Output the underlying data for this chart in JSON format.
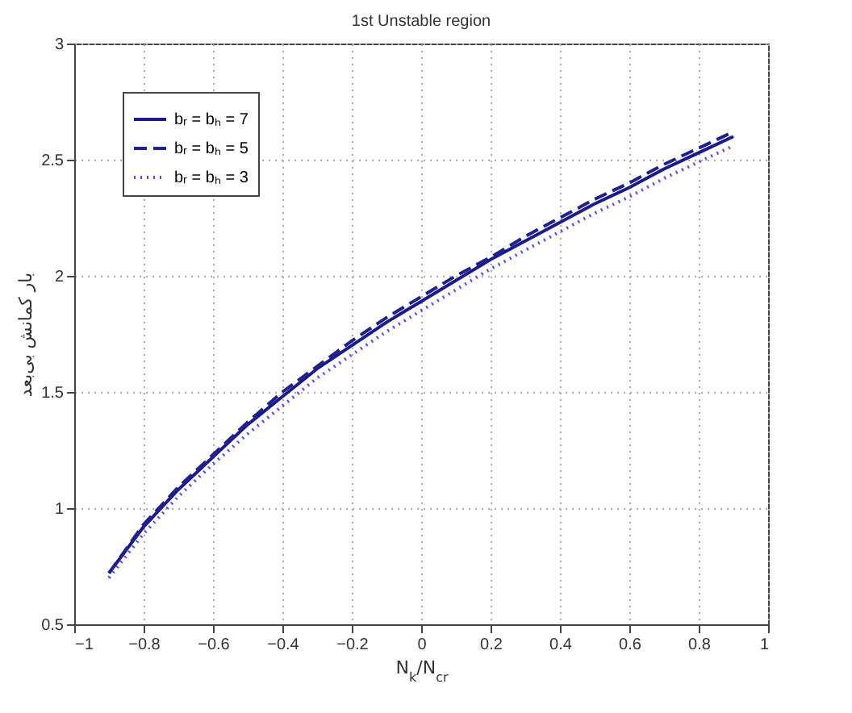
{
  "chart_data": {
    "type": "line",
    "title": "1st Unstable region",
    "xlabel": "N$_{k}$/N$_{cr}$",
    "ylabel": "بار کمانش بی‌بعد",
    "x": [
      -0.9,
      -0.8,
      -0.7,
      -0.6,
      -0.5,
      -0.4,
      -0.3,
      -0.2,
      -0.1,
      0,
      0.1,
      0.2,
      0.3,
      0.4,
      0.5,
      0.6,
      0.7,
      0.8,
      0.9
    ],
    "series": [
      {
        "name": "bᵣ = bₕ = 7",
        "color": "#1a1a8c",
        "line_style": "solid",
        "values": [
          0.72,
          0.92,
          1.08,
          1.22,
          1.36,
          1.48,
          1.6,
          1.7,
          1.8,
          1.89,
          1.98,
          2.07,
          2.15,
          2.23,
          2.31,
          2.38,
          2.46,
          2.53,
          2.6
        ]
      },
      {
        "name": "bᵣ = bₕ = 5",
        "color": "#20208f",
        "line_style": "dashed",
        "values": [
          0.72,
          0.93,
          1.09,
          1.23,
          1.37,
          1.5,
          1.61,
          1.72,
          1.82,
          1.91,
          2.0,
          2.08,
          2.17,
          2.25,
          2.33,
          2.4,
          2.48,
          2.55,
          2.62
        ]
      },
      {
        "name": "bᵣ = bₕ = 3",
        "color": "#4a4aff",
        "line_style": "dotted",
        "values": [
          0.7,
          0.89,
          1.05,
          1.19,
          1.32,
          1.44,
          1.56,
          1.66,
          1.76,
          1.85,
          1.94,
          2.03,
          2.11,
          2.19,
          2.27,
          2.34,
          2.42,
          2.49,
          2.56
        ]
      }
    ],
    "xlim": [
      -1,
      1
    ],
    "xticks": [
      -1,
      -0.8,
      -0.6,
      -0.4,
      -0.2,
      0,
      0.2,
      0.4,
      0.6,
      0.8,
      1
    ],
    "ylim": [
      0.5,
      3
    ],
    "yticks": [
      0.5,
      1,
      1.5,
      2,
      2.5,
      3
    ],
    "grid": true,
    "legend": "top left",
    "marker": "none"
  }
}
